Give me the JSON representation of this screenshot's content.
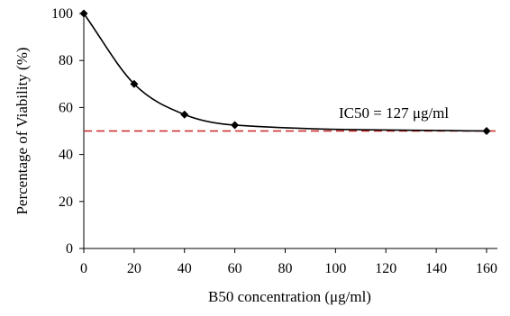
{
  "chart_data": {
    "type": "line",
    "title": "",
    "xlabel": "B50 concentration (μg/ml)",
    "ylabel": "Percentage of Viability (%)",
    "xlim": [
      0,
      160
    ],
    "ylim": [
      0,
      100
    ],
    "x_ticks": [
      0,
      20,
      40,
      60,
      80,
      100,
      120,
      140,
      160
    ],
    "y_ticks": [
      0,
      20,
      40,
      60,
      80,
      100
    ],
    "grid": false,
    "series": [
      {
        "x": [
          0,
          20,
          40,
          60,
          160
        ],
        "y": [
          100,
          70,
          57,
          52.5,
          50
        ],
        "color": "#000000",
        "marker": "diamond",
        "smooth": true
      }
    ],
    "reference_line": {
      "y": 50,
      "color": "#cc2222",
      "style": "dashed"
    },
    "annotation": {
      "text": "IC50 = 127 μg/ml"
    }
  }
}
